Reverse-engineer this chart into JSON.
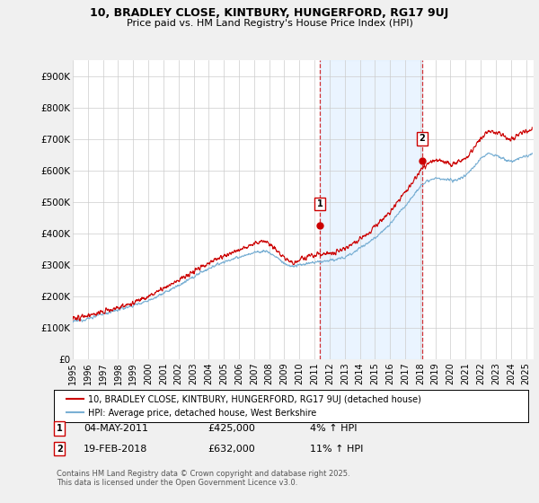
{
  "title1": "10, BRADLEY CLOSE, KINTBURY, HUNGERFORD, RG17 9UJ",
  "title2": "Price paid vs. HM Land Registry's House Price Index (HPI)",
  "xlim_start": 1995.0,
  "xlim_end": 2025.5,
  "ylim": [
    0,
    950000
  ],
  "yticks": [
    0,
    100000,
    200000,
    300000,
    400000,
    500000,
    600000,
    700000,
    800000,
    900000
  ],
  "ytick_labels": [
    "£0",
    "£100K",
    "£200K",
    "£300K",
    "£400K",
    "£500K",
    "£600K",
    "£700K",
    "£800K",
    "£900K"
  ],
  "xticks": [
    1995,
    1996,
    1997,
    1998,
    1999,
    2000,
    2001,
    2002,
    2003,
    2004,
    2005,
    2006,
    2007,
    2008,
    2009,
    2010,
    2011,
    2012,
    2013,
    2014,
    2015,
    2016,
    2017,
    2018,
    2019,
    2020,
    2021,
    2022,
    2023,
    2024,
    2025
  ],
  "sale1_x": 2011.34,
  "sale1_y": 425000,
  "sale2_x": 2018.12,
  "sale2_y": 632000,
  "sale1_date": "04-MAY-2011",
  "sale1_price": "£425,000",
  "sale1_hpi": "4% ↑ HPI",
  "sale2_date": "19-FEB-2018",
  "sale2_price": "£632,000",
  "sale2_hpi": "11% ↑ HPI",
  "line_color_red": "#cc0000",
  "line_color_blue": "#7ab0d4",
  "shaded_region_color": "#ddeeff",
  "grid_color": "#cccccc",
  "background_color": "#f0f0f0",
  "plot_bg_color": "#ffffff",
  "legend_label_red": "10, BRADLEY CLOSE, KINTBURY, HUNGERFORD, RG17 9UJ (detached house)",
  "legend_label_blue": "HPI: Average price, detached house, West Berkshire",
  "footnote": "Contains HM Land Registry data © Crown copyright and database right 2025.\nThis data is licensed under the Open Government Licence v3.0.",
  "hpi_milestones_x": [
    1995.0,
    1996.0,
    1997.0,
    1998.0,
    1999.0,
    2000.0,
    2001.0,
    2002.5,
    2003.5,
    2004.5,
    2005.0,
    2006.0,
    2007.0,
    2007.8,
    2008.5,
    2009.0,
    2009.5,
    2010.0,
    2010.5,
    2011.0,
    2011.5,
    2012.0,
    2012.5,
    2013.0,
    2013.5,
    2014.0,
    2014.5,
    2015.0,
    2015.5,
    2016.0,
    2016.5,
    2017.0,
    2017.5,
    2018.0,
    2018.5,
    2019.0,
    2019.5,
    2020.0,
    2020.5,
    2021.0,
    2021.5,
    2022.0,
    2022.5,
    2023.0,
    2023.5,
    2024.0,
    2024.5,
    2025.3
  ],
  "hpi_milestones_v": [
    120000,
    130000,
    145000,
    158000,
    172000,
    188000,
    210000,
    248000,
    278000,
    300000,
    310000,
    325000,
    340000,
    345000,
    325000,
    305000,
    295000,
    300000,
    305000,
    308000,
    312000,
    315000,
    318000,
    325000,
    338000,
    355000,
    368000,
    388000,
    408000,
    430000,
    460000,
    488000,
    520000,
    550000,
    570000,
    575000,
    572000,
    568000,
    572000,
    585000,
    610000,
    638000,
    655000,
    648000,
    638000,
    628000,
    638000,
    650000
  ],
  "prop_milestones_x": [
    1995.0,
    1996.0,
    1997.0,
    1998.0,
    1999.0,
    2000.0,
    2001.0,
    2002.5,
    2003.5,
    2004.5,
    2005.0,
    2006.0,
    2007.0,
    2007.8,
    2008.5,
    2009.0,
    2009.5,
    2010.0,
    2010.5,
    2011.0,
    2011.5,
    2012.0,
    2012.5,
    2013.0,
    2013.5,
    2014.0,
    2014.5,
    2015.0,
    2015.5,
    2016.0,
    2016.5,
    2017.0,
    2017.5,
    2018.0,
    2018.5,
    2019.0,
    2019.5,
    2020.0,
    2020.5,
    2021.0,
    2021.5,
    2022.0,
    2022.5,
    2023.0,
    2023.5,
    2024.0,
    2024.5,
    2025.3
  ],
  "prop_milestones_v": [
    130000,
    138000,
    152000,
    165000,
    180000,
    200000,
    225000,
    265000,
    295000,
    320000,
    330000,
    348000,
    368000,
    375000,
    348000,
    322000,
    308000,
    318000,
    325000,
    330000,
    335000,
    338000,
    342000,
    352000,
    368000,
    385000,
    400000,
    420000,
    445000,
    468000,
    500000,
    530000,
    562000,
    600000,
    625000,
    632000,
    628000,
    622000,
    625000,
    640000,
    668000,
    700000,
    725000,
    720000,
    710000,
    700000,
    715000,
    730000
  ]
}
